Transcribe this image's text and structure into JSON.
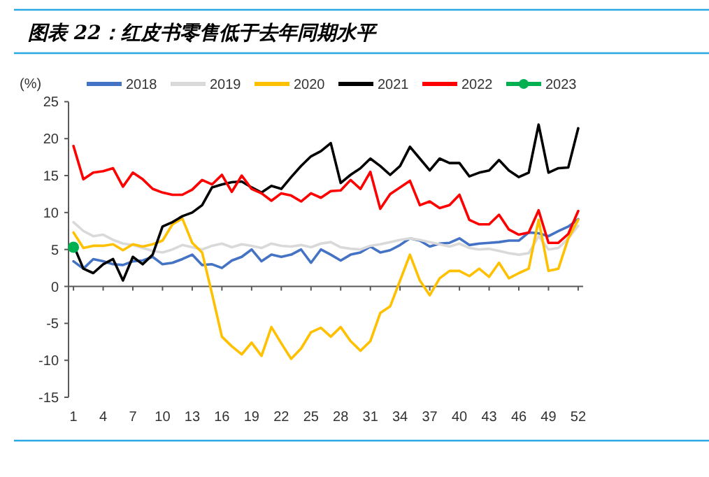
{
  "chart_data": {
    "type": "line",
    "title": "图表 22：红皮书零售低于去年同期水平",
    "ylabel": "(%)",
    "x": [
      1,
      2,
      3,
      4,
      5,
      6,
      7,
      8,
      9,
      10,
      11,
      12,
      13,
      14,
      15,
      16,
      17,
      18,
      19,
      20,
      21,
      22,
      23,
      24,
      25,
      26,
      27,
      28,
      29,
      30,
      31,
      32,
      33,
      34,
      35,
      36,
      37,
      38,
      39,
      40,
      41,
      42,
      43,
      44,
      45,
      46,
      47,
      48,
      49,
      50,
      51,
      52
    ],
    "xlim": [
      0.5,
      52.5
    ],
    "xticks": [
      1,
      4,
      7,
      10,
      13,
      16,
      19,
      22,
      25,
      28,
      31,
      34,
      37,
      40,
      43,
      46,
      49,
      52
    ],
    "ylim": [
      -15,
      25
    ],
    "yticks": [
      -15,
      -10,
      -5,
      0,
      5,
      10,
      15,
      20,
      25
    ],
    "legend": "top",
    "line_style": "solid",
    "series": [
      {
        "name": "2018",
        "color": "#4472c4",
        "values": [
          3.4,
          2.4,
          3.7,
          3.4,
          3.0,
          2.9,
          3.4,
          3.5,
          4.0,
          3.0,
          3.2,
          3.7,
          4.3,
          2.9,
          3.0,
          2.5,
          3.5,
          4.0,
          5.0,
          3.4,
          4.3,
          4.0,
          4.3,
          5.0,
          3.2,
          5.0,
          4.3,
          3.5,
          4.3,
          4.6,
          5.4,
          4.6,
          4.9,
          5.6,
          6.5,
          6.2,
          5.4,
          5.8,
          5.9,
          6.5,
          5.6,
          5.8,
          5.9,
          6.0,
          6.2,
          6.2,
          7.3,
          7.2,
          6.8,
          7.5,
          8.1,
          9.1
        ]
      },
      {
        "name": "2019",
        "color": "#d9d9d9",
        "values": [
          8.7,
          7.5,
          6.8,
          7.0,
          6.3,
          5.8,
          5.6,
          5.2,
          4.8,
          4.6,
          5.0,
          5.6,
          5.3,
          5.0,
          5.5,
          5.8,
          5.3,
          5.7,
          5.5,
          5.2,
          5.8,
          5.5,
          5.4,
          5.6,
          5.3,
          5.8,
          6.0,
          5.3,
          5.1,
          5.0,
          5.5,
          5.7,
          6.0,
          6.3,
          6.5,
          6.3,
          6.0,
          5.7,
          5.4,
          5.8,
          5.2,
          5.0,
          5.1,
          4.8,
          4.5,
          4.3,
          4.5,
          6.8,
          5.0,
          5.2,
          6.5,
          8.2
        ]
      },
      {
        "name": "2020",
        "color": "#ffc000",
        "values": [
          7.3,
          5.2,
          5.5,
          5.5,
          5.7,
          4.9,
          5.7,
          5.4,
          5.7,
          6.2,
          8.4,
          9.2,
          5.9,
          4.6,
          -1.0,
          -6.8,
          -8.1,
          -9.2,
          -7.6,
          -9.4,
          -5.5,
          -7.7,
          -9.8,
          -8.4,
          -6.2,
          -5.6,
          -6.8,
          -5.5,
          -7.4,
          -8.7,
          -7.4,
          -3.6,
          -2.7,
          0.8,
          4.3,
          0.8,
          -1.2,
          1.1,
          2.1,
          2.1,
          1.4,
          2.4,
          1.3,
          3.2,
          1.1,
          1.8,
          2.4,
          9.0,
          2.1,
          2.4,
          6.5,
          9.0
        ]
      },
      {
        "name": "2021",
        "color": "#000000",
        "values": [
          5.6,
          2.4,
          1.8,
          3.0,
          3.7,
          0.8,
          4.0,
          3.0,
          4.3,
          8.1,
          8.7,
          9.5,
          10.0,
          11.0,
          13.4,
          13.8,
          14.1,
          14.2,
          13.4,
          12.7,
          13.6,
          13.2,
          14.8,
          16.3,
          17.6,
          18.3,
          19.4,
          14.0,
          15.1,
          16.0,
          17.3,
          16.3,
          15.1,
          16.3,
          18.9,
          17.3,
          15.7,
          17.3,
          16.7,
          16.7,
          14.9,
          15.4,
          15.7,
          17.1,
          15.7,
          14.8,
          15.4,
          21.9,
          15.4,
          16.0,
          16.1,
          21.4
        ]
      },
      {
        "name": "2022",
        "color": "#ff0000",
        "values": [
          19.0,
          14.5,
          15.4,
          15.6,
          16.0,
          13.5,
          15.4,
          14.5,
          13.2,
          12.7,
          12.4,
          12.4,
          13.1,
          14.4,
          13.8,
          15.1,
          12.8,
          15.0,
          13.2,
          12.6,
          11.6,
          12.6,
          12.3,
          11.5,
          12.6,
          12.0,
          12.9,
          13.0,
          14.4,
          13.2,
          15.5,
          10.5,
          12.5,
          13.4,
          14.3,
          11.0,
          11.5,
          10.6,
          11.0,
          12.4,
          9.0,
          8.4,
          8.4,
          9.7,
          7.7,
          7.0,
          7.3,
          10.3,
          5.9,
          5.9,
          7.1,
          10.2
        ]
      },
      {
        "name": "2023",
        "color": "#00b050",
        "marker": "circle",
        "values": [
          5.3,
          null,
          null,
          null,
          null,
          null,
          null,
          null,
          null,
          null,
          null,
          null,
          null,
          null,
          null,
          null,
          null,
          null,
          null,
          null,
          null,
          null,
          null,
          null,
          null,
          null,
          null,
          null,
          null,
          null,
          null,
          null,
          null,
          null,
          null,
          null,
          null,
          null,
          null,
          null,
          null,
          null,
          null,
          null,
          null,
          null,
          null,
          null,
          null,
          null,
          null,
          null
        ]
      }
    ]
  }
}
